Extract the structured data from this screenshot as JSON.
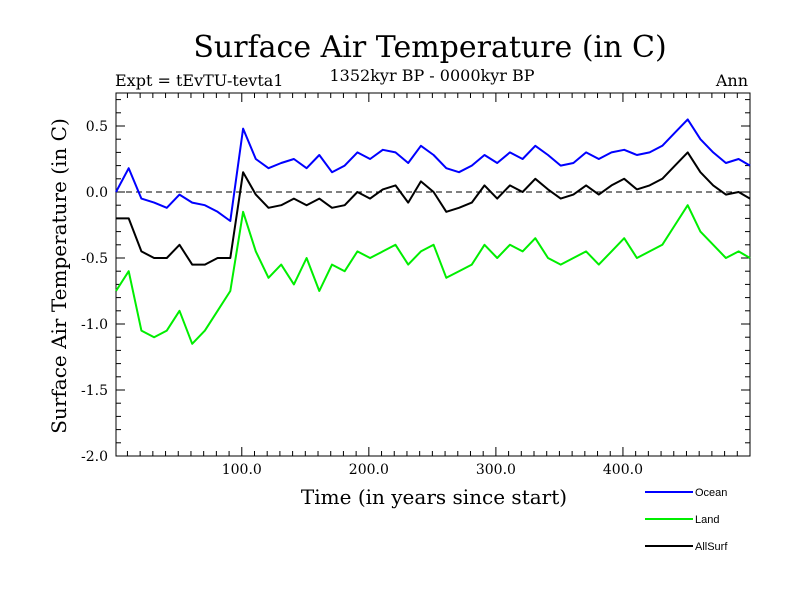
{
  "chart_data": {
    "type": "line",
    "title": "Surface Air Temperature (in C)",
    "experiment": "Expt = tEvTU-tevta1",
    "period": "1352kyr BP - 0000kyr BP",
    "season": "Ann",
    "xlabel": "Time (in years since start)",
    "ylabel": "Surface Air Temperature (in C)",
    "xlim": [
      1,
      500
    ],
    "ylim": [
      -2.0,
      0.75
    ],
    "xticks": [
      100,
      200,
      300,
      400
    ],
    "xtick_labels": [
      "100.0",
      "200.0",
      "300.0",
      "400.0"
    ],
    "yticks": [
      0.5,
      0.0,
      -0.5,
      -1.0,
      -1.5,
      -2.0
    ],
    "ytick_labels": [
      "0.5",
      "0.0",
      "-0.5",
      "-1.0",
      "-1.5",
      "-2.0"
    ],
    "zero_line": 0.0,
    "x_step": 10,
    "series": [
      {
        "name": "Ocean",
        "color": "#0000ff",
        "values": [
          0.0,
          0.18,
          -0.05,
          -0.08,
          -0.12,
          -0.02,
          -0.08,
          -0.1,
          -0.15,
          -0.22,
          0.48,
          0.25,
          0.18,
          0.22,
          0.25,
          0.18,
          0.28,
          0.15,
          0.2,
          0.3,
          0.25,
          0.32,
          0.3,
          0.22,
          0.35,
          0.28,
          0.18,
          0.15,
          0.2,
          0.28,
          0.22,
          0.3,
          0.25,
          0.35,
          0.28,
          0.2,
          0.22,
          0.3,
          0.25,
          0.3,
          0.32,
          0.28,
          0.3,
          0.35,
          0.45,
          0.55,
          0.4,
          0.3,
          0.22,
          0.25,
          0.2
        ]
      },
      {
        "name": "Land",
        "color": "#00ee00",
        "values": [
          -0.75,
          -0.6,
          -1.05,
          -1.1,
          -1.05,
          -0.9,
          -1.15,
          -1.05,
          -0.9,
          -0.75,
          -0.15,
          -0.45,
          -0.65,
          -0.55,
          -0.7,
          -0.5,
          -0.75,
          -0.55,
          -0.6,
          -0.45,
          -0.5,
          -0.45,
          -0.4,
          -0.55,
          -0.45,
          -0.4,
          -0.65,
          -0.6,
          -0.55,
          -0.4,
          -0.5,
          -0.4,
          -0.45,
          -0.35,
          -0.5,
          -0.55,
          -0.5,
          -0.45,
          -0.55,
          -0.45,
          -0.35,
          -0.5,
          -0.45,
          -0.4,
          -0.25,
          -0.1,
          -0.3,
          -0.4,
          -0.5,
          -0.45,
          -0.5
        ]
      },
      {
        "name": "AllSurf",
        "color": "#000000",
        "values": [
          -0.2,
          -0.2,
          -0.45,
          -0.5,
          -0.5,
          -0.4,
          -0.55,
          -0.55,
          -0.5,
          -0.5,
          0.15,
          -0.02,
          -0.12,
          -0.1,
          -0.05,
          -0.1,
          -0.05,
          -0.12,
          -0.1,
          0.0,
          -0.05,
          0.02,
          0.05,
          -0.08,
          0.08,
          0.0,
          -0.15,
          -0.12,
          -0.08,
          0.05,
          -0.05,
          0.05,
          0.0,
          0.1,
          0.02,
          -0.05,
          -0.02,
          0.05,
          -0.02,
          0.05,
          0.1,
          0.02,
          0.05,
          0.1,
          0.2,
          0.3,
          0.15,
          0.05,
          -0.02,
          0.0,
          -0.05
        ]
      }
    ],
    "legend_position": "bottom-right"
  }
}
